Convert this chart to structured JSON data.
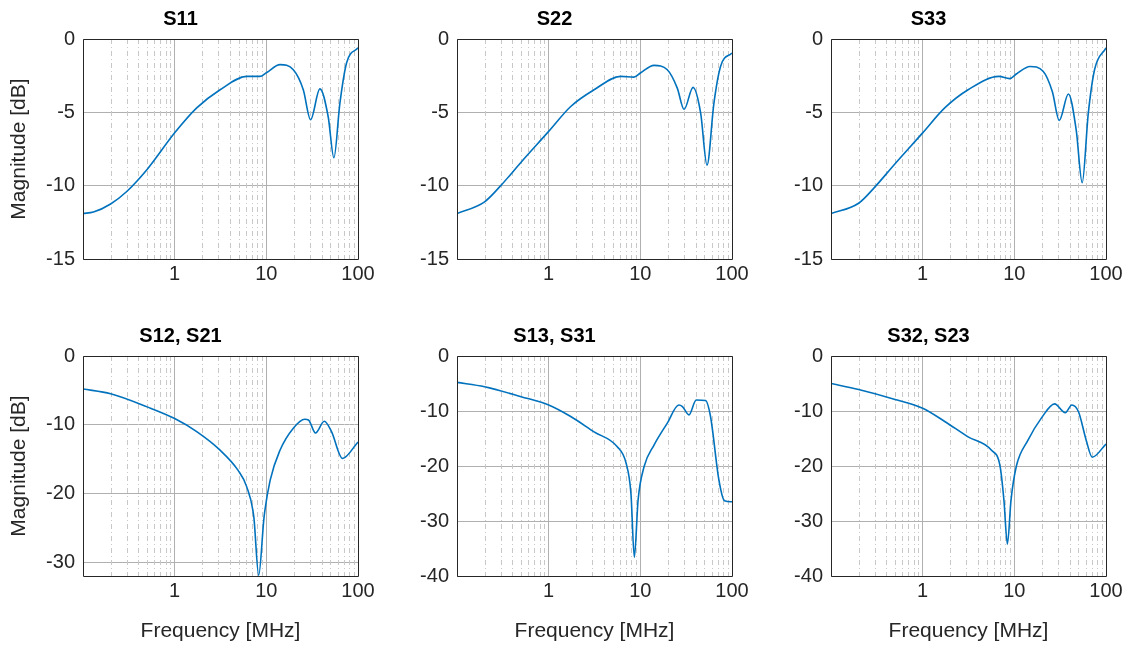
{
  "chart_data": [
    {
      "type": "line",
      "title": "S11",
      "ylabel": "Magnitude [dB]",
      "color": "#0072bd",
      "log": "x",
      "grid": true,
      "xlim": [
        0.1,
        100
      ],
      "xticks": [
        1,
        10,
        100
      ],
      "ylim": [
        -15,
        0
      ],
      "yticks": [
        -15,
        -10,
        -5,
        0
      ],
      "x": [
        0.1,
        0.13,
        0.2,
        0.3,
        0.5,
        1,
        1.74,
        3.13,
        6.1,
        8.5,
        10.1,
        14.1,
        19.7,
        25.3,
        30.4,
        38.4,
        47.3,
        54.6,
        63.4,
        75,
        100
      ],
      "values": [
        -11.9,
        -11.8,
        -11.25,
        -10.4,
        -8.9,
        -6.4,
        -4.7,
        -3.46,
        -2.55,
        -2.55,
        -2.28,
        -1.75,
        -2.1,
        -3.46,
        -5.5,
        -3.4,
        -5.3,
        -8.1,
        -4.4,
        -1.64,
        -0.6
      ]
    },
    {
      "type": "line",
      "title": "S22",
      "color": "#0072bd",
      "log": "x",
      "grid": true,
      "xlim": [
        0.1,
        100
      ],
      "xticks": [
        1,
        10,
        100
      ],
      "ylim": [
        -15,
        0
      ],
      "yticks": [
        -15,
        -10,
        -5,
        0
      ],
      "x": [
        0.1,
        0.2,
        0.3,
        0.5,
        1,
        1.74,
        3.13,
        6.1,
        8.5,
        10.1,
        14.1,
        19.7,
        25.3,
        30,
        37.6,
        45.5,
        53.4,
        63.4,
        75,
        100
      ],
      "values": [
        -11.9,
        -11.1,
        -10,
        -8.4,
        -6.3,
        -4.6,
        -3.46,
        -2.55,
        -2.6,
        -2.3,
        -1.8,
        -2.1,
        -3.35,
        -4.8,
        -3.3,
        -5.05,
        -8.6,
        -4.4,
        -1.87,
        -0.95
      ]
    },
    {
      "type": "line",
      "title": "S33",
      "color": "#0072bd",
      "log": "x",
      "grid": true,
      "xlim": [
        0.1,
        100
      ],
      "xticks": [
        1,
        10,
        100
      ],
      "ylim": [
        -15,
        0
      ],
      "yticks": [
        -15,
        -10,
        -5,
        0
      ],
      "x": [
        0.1,
        0.2,
        0.3,
        0.5,
        1,
        1.74,
        3.13,
        6.8,
        8.9,
        10.6,
        14.8,
        20.6,
        26,
        30.9,
        38.9,
        47.3,
        55,
        64,
        75,
        100
      ],
      "values": [
        -11.9,
        -11.2,
        -10.1,
        -8.5,
        -6.4,
        -4.7,
        -3.46,
        -2.55,
        -2.7,
        -2.37,
        -1.87,
        -2.2,
        -3.6,
        -5.55,
        -3.75,
        -6.2,
        -9.8,
        -5.1,
        -2.1,
        -0.6
      ]
    },
    {
      "type": "line",
      "title": "S12, S21",
      "ylabel": "Magnitude [dB]",
      "xlabel": "Frequency [MHz]",
      "color": "#0072bd",
      "log": "x",
      "grid": true,
      "xlim": [
        0.1,
        100
      ],
      "xticks": [
        1,
        10,
        100
      ],
      "ylim": [
        -32,
        0
      ],
      "yticks": [
        -30,
        -20,
        -10,
        0
      ],
      "x": [
        0.1,
        0.2,
        0.5,
        1,
        1.74,
        3.13,
        4.9,
        6.1,
        7.3,
        8.25,
        9.45,
        11,
        14.1,
        19.7,
        26.3,
        28.8,
        34.4,
        42.9,
        51.4,
        67.7,
        100
      ],
      "values": [
        -4.8,
        -5.5,
        -7.4,
        -9.1,
        -11,
        -13.7,
        -16.6,
        -19,
        -23.4,
        -31.9,
        -23.4,
        -18.1,
        -13.7,
        -10.5,
        -9.2,
        -9.3,
        -11.2,
        -9.5,
        -11,
        -14.9,
        -12.5
      ]
    },
    {
      "type": "line",
      "title": "S13, S31",
      "xlabel": "Frequency [MHz]",
      "color": "#0072bd",
      "log": "x",
      "grid": true,
      "xlim": [
        0.1,
        100
      ],
      "xticks": [
        1,
        10,
        100
      ],
      "ylim": [
        -40,
        0
      ],
      "yticks": [
        -40,
        -30,
        -20,
        -10,
        0
      ],
      "x": [
        0.1,
        0.2,
        0.5,
        1,
        1.74,
        3.13,
        5.6,
        7,
        7.9,
        8.6,
        9.45,
        11,
        14.1,
        19.7,
        26.3,
        28.8,
        33.9,
        40.7,
        51.4,
        58.3,
        71.9,
        82.8,
        100
      ],
      "values": [
        -4.8,
        -5.6,
        -7.4,
        -8.9,
        -11,
        -13.8,
        -16.5,
        -19.5,
        -25,
        -36.6,
        -26.2,
        -20.1,
        -16.2,
        -12.2,
        -8.9,
        -9.2,
        -10.7,
        -8,
        -8.1,
        -11,
        -22.5,
        -26.3,
        -26.5
      ]
    },
    {
      "type": "line",
      "title": "S32, S23",
      "xlabel": "Frequency [MHz]",
      "color": "#0072bd",
      "log": "x",
      "grid": true,
      "xlim": [
        0.1,
        100
      ],
      "xticks": [
        1,
        10,
        100
      ],
      "ylim": [
        -40,
        0
      ],
      "yticks": [
        -40,
        -30,
        -20,
        -10,
        0
      ],
      "x": [
        0.1,
        0.2,
        0.5,
        1,
        1.74,
        3.13,
        5.6,
        7,
        7.7,
        8.4,
        9.2,
        10.5,
        14.1,
        19.7,
        27.5,
        35.9,
        42.4,
        50,
        60.8,
        70.7,
        100
      ],
      "values": [
        -5,
        -6.1,
        -7.9,
        -9.5,
        -11.9,
        -14.7,
        -17.1,
        -20.1,
        -26.2,
        -34.2,
        -26.2,
        -20.1,
        -15.3,
        -11.3,
        -8.7,
        -10.3,
        -8.9,
        -10.1,
        -15.3,
        -18.4,
        -16
      ]
    }
  ]
}
